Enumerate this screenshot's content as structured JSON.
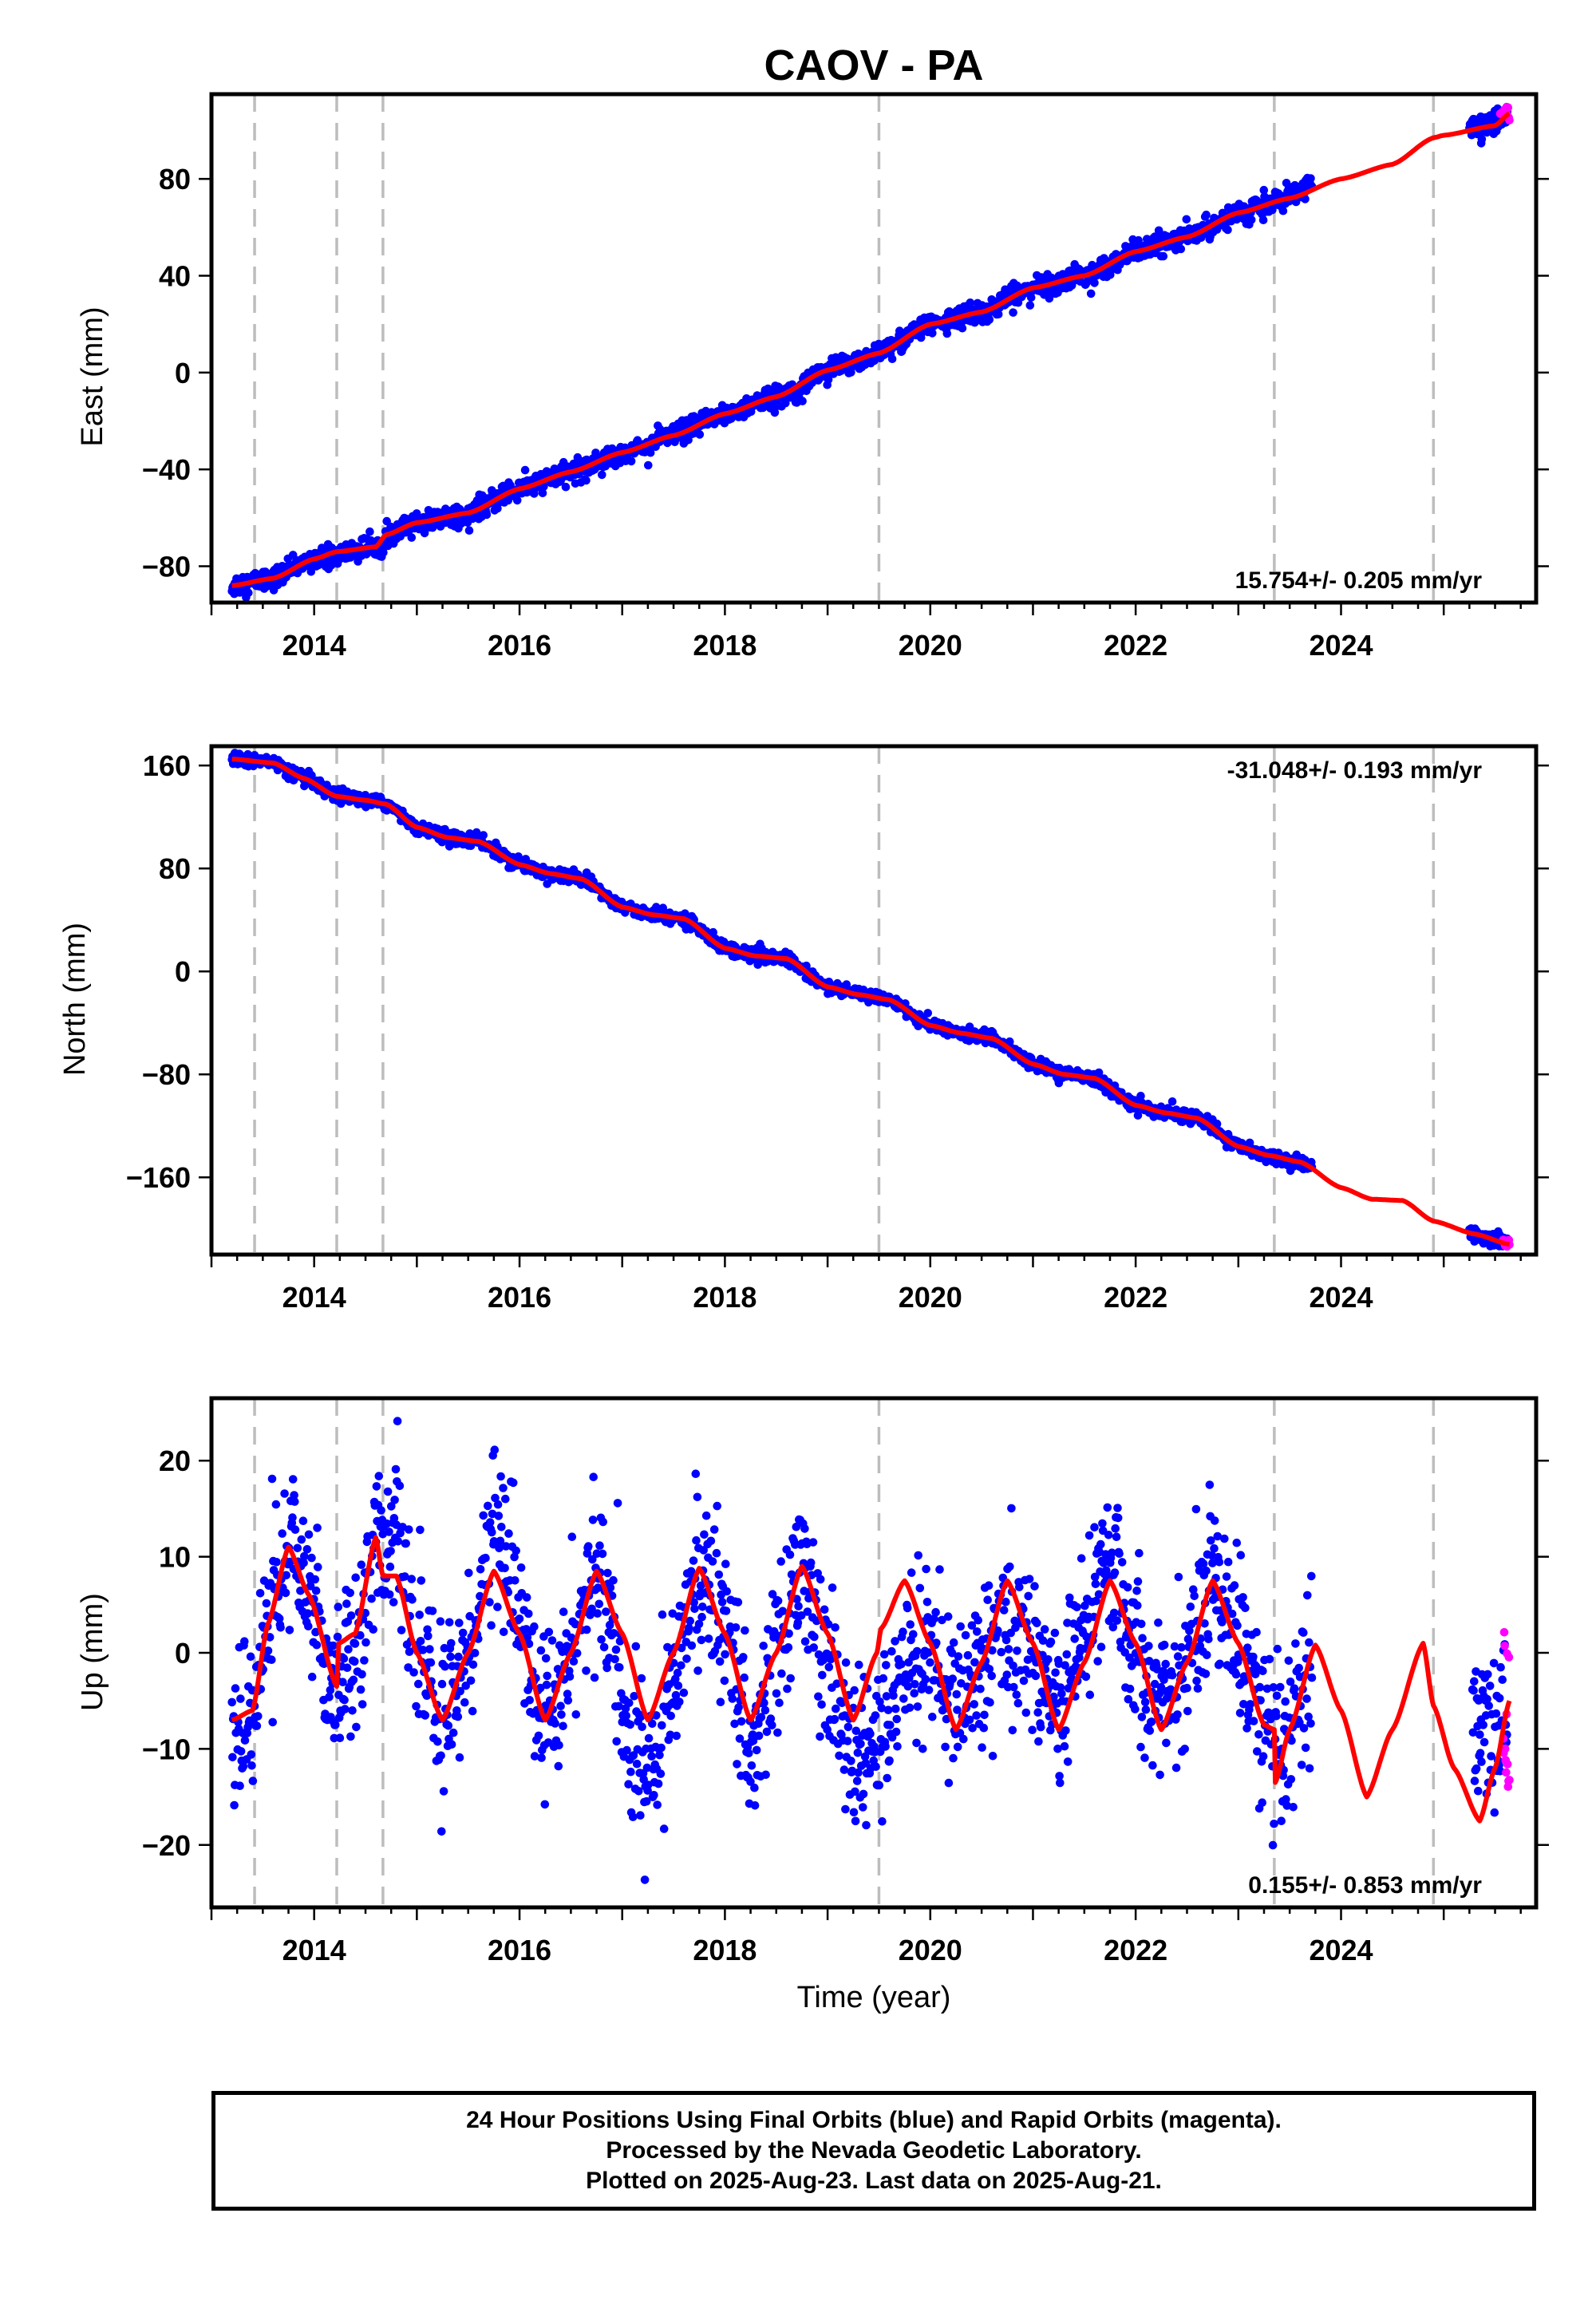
{
  "title": "CAOV - PA",
  "footer": {
    "line1": "24 Hour Positions Using Final Orbits (blue) and Rapid Orbits (magenta).",
    "line2": "Processed by the Nevada Geodetic Laboratory.",
    "line3": "Plotted on 2025-Aug-23. Last data on 2025-Aug-21."
  },
  "colors": {
    "final": "#0000ff",
    "rapid": "#ff00ff",
    "model": "#ff0000",
    "event_line": "#bdbdbd"
  },
  "chart_data": [
    {
      "type": "scatter",
      "ylabel": "East (mm)",
      "xlim": [
        2013.0,
        2025.9
      ],
      "ylim": [
        -95,
        115
      ],
      "xticks": [
        2014,
        2016,
        2018,
        2020,
        2022,
        2024
      ],
      "yticks": [
        -80,
        -40,
        0,
        40,
        80
      ],
      "rate_label": "15.754+/- 0.205 mm/yr",
      "rate_position": "bottom-right",
      "event_lines": [
        2013.42,
        2014.22,
        2014.67,
        2019.5,
        2023.35,
        2024.9
      ],
      "model": [
        [
          2013.2,
          -88
        ],
        [
          2013.6,
          -85
        ],
        [
          2014.0,
          -77
        ],
        [
          2014.22,
          -74
        ],
        [
          2014.6,
          -72
        ],
        [
          2014.7,
          -67
        ],
        [
          2015.0,
          -62
        ],
        [
          2015.5,
          -58
        ],
        [
          2016.0,
          -48
        ],
        [
          2016.5,
          -41
        ],
        [
          2017.0,
          -33
        ],
        [
          2017.5,
          -26
        ],
        [
          2018.0,
          -17
        ],
        [
          2018.5,
          -10
        ],
        [
          2019.0,
          1
        ],
        [
          2019.5,
          8
        ],
        [
          2020.0,
          20
        ],
        [
          2020.5,
          25
        ],
        [
          2021.0,
          35
        ],
        [
          2021.5,
          40
        ],
        [
          2022.0,
          50
        ],
        [
          2022.5,
          56
        ],
        [
          2023.0,
          66
        ],
        [
          2023.5,
          72
        ],
        [
          2024.0,
          80
        ],
        [
          2024.5,
          86
        ],
        [
          2024.9,
          97
        ],
        [
          2025.0,
          98
        ],
        [
          2025.5,
          102
        ],
        [
          2025.64,
          107
        ]
      ],
      "final": [
        [
          2013.2,
          -88
        ],
        [
          2013.6,
          -85
        ],
        [
          2014.0,
          -77
        ],
        [
          2014.6,
          -72
        ],
        [
          2015.0,
          -62
        ],
        [
          2015.5,
          -58
        ],
        [
          2016.0,
          -48
        ],
        [
          2016.5,
          -41
        ],
        [
          2017.0,
          -33
        ],
        [
          2017.5,
          -26
        ],
        [
          2018.0,
          -17
        ],
        [
          2018.5,
          -10
        ],
        [
          2019.0,
          1
        ],
        [
          2019.5,
          8
        ],
        [
          2020.0,
          20
        ],
        [
          2020.5,
          25
        ],
        [
          2021.0,
          35
        ],
        [
          2021.5,
          40
        ],
        [
          2022.0,
          50
        ],
        [
          2022.5,
          56
        ],
        [
          2023.0,
          66
        ],
        [
          2023.5,
          72
        ],
        [
          2023.7,
          78
        ],
        [
          2025.3,
          101
        ],
        [
          2025.6,
          105
        ]
      ],
      "final_noise": 2.2,
      "final_segments": [
        [
          2013.2,
          2023.72
        ],
        [
          2025.25,
          2025.62
        ]
      ],
      "rapid_range": [
        2025.55,
        2025.64
      ],
      "rapid_values": [
        104,
        110
      ]
    },
    {
      "type": "scatter",
      "ylabel": "North (mm)",
      "xlim": [
        2013.0,
        2025.9
      ],
      "ylim": [
        -220,
        175
      ],
      "xticks": [
        2014,
        2016,
        2018,
        2020,
        2022,
        2024
      ],
      "yticks": [
        -160,
        -80,
        0,
        80,
        160
      ],
      "rate_label": "-31.048+/- 0.193 mm/yr",
      "rate_position": "top-right",
      "event_lines": [
        2013.42,
        2014.22,
        2014.67,
        2019.5,
        2023.35,
        2024.9
      ],
      "model": [
        [
          2013.2,
          165
        ],
        [
          2013.6,
          162
        ],
        [
          2013.9,
          150
        ],
        [
          2014.22,
          136
        ],
        [
          2014.5,
          133
        ],
        [
          2014.7,
          130
        ],
        [
          2015.0,
          112
        ],
        [
          2015.3,
          104
        ],
        [
          2015.6,
          101
        ],
        [
          2016.0,
          83
        ],
        [
          2016.3,
          76
        ],
        [
          2016.6,
          72
        ],
        [
          2017.0,
          50
        ],
        [
          2017.3,
          44
        ],
        [
          2017.6,
          41
        ],
        [
          2018.0,
          18
        ],
        [
          2018.3,
          12
        ],
        [
          2018.6,
          10
        ],
        [
          2019.0,
          -12
        ],
        [
          2019.3,
          -18
        ],
        [
          2019.6,
          -22
        ],
        [
          2020.0,
          -42
        ],
        [
          2020.3,
          -48
        ],
        [
          2020.6,
          -52
        ],
        [
          2021.0,
          -72
        ],
        [
          2021.3,
          -80
        ],
        [
          2021.6,
          -83
        ],
        [
          2022.0,
          -104
        ],
        [
          2022.3,
          -110
        ],
        [
          2022.6,
          -114
        ],
        [
          2023.0,
          -136
        ],
        [
          2023.3,
          -143
        ],
        [
          2023.6,
          -148
        ],
        [
          2024.0,
          -168
        ],
        [
          2024.3,
          -177
        ],
        [
          2024.6,
          -178
        ],
        [
          2024.9,
          -194
        ],
        [
          2025.3,
          -204
        ],
        [
          2025.64,
          -212
        ]
      ],
      "final": [
        [
          2013.2,
          165
        ],
        [
          2013.6,
          162
        ],
        [
          2013.9,
          150
        ],
        [
          2014.22,
          136
        ],
        [
          2014.5,
          133
        ],
        [
          2014.7,
          130
        ],
        [
          2015.0,
          112
        ],
        [
          2015.3,
          104
        ],
        [
          2015.6,
          101
        ],
        [
          2016.0,
          83
        ],
        [
          2016.3,
          76
        ],
        [
          2016.6,
          72
        ],
        [
          2017.0,
          50
        ],
        [
          2017.3,
          44
        ],
        [
          2017.6,
          41
        ],
        [
          2018.0,
          18
        ],
        [
          2018.3,
          12
        ],
        [
          2018.6,
          10
        ],
        [
          2019.0,
          -12
        ],
        [
          2019.3,
          -18
        ],
        [
          2019.6,
          -22
        ],
        [
          2020.0,
          -42
        ],
        [
          2020.3,
          -48
        ],
        [
          2020.6,
          -52
        ],
        [
          2021.0,
          -72
        ],
        [
          2021.3,
          -80
        ],
        [
          2021.6,
          -83
        ],
        [
          2022.0,
          -104
        ],
        [
          2022.3,
          -110
        ],
        [
          2022.6,
          -114
        ],
        [
          2023.0,
          -136
        ],
        [
          2023.3,
          -143
        ],
        [
          2023.7,
          -152
        ],
        [
          2025.3,
          -204
        ],
        [
          2025.6,
          -210
        ]
      ],
      "final_noise": 2.5,
      "final_segments": [
        [
          2013.2,
          2023.72
        ],
        [
          2025.25,
          2025.62
        ]
      ],
      "rapid_range": [
        2025.58,
        2025.64
      ],
      "rapid_values": [
        -214,
        -208
      ]
    },
    {
      "type": "scatter",
      "ylabel": "Up (mm)",
      "xlabel": "Time (year)",
      "xlim": [
        2013.0,
        2025.9
      ],
      "ylim": [
        -26.5,
        26.5
      ],
      "xticks": [
        2014,
        2016,
        2018,
        2020,
        2022,
        2024
      ],
      "yticks": [
        -20,
        -10,
        0,
        10,
        20
      ],
      "rate_label": "0.155+/- 0.853 mm/yr",
      "rate_position": "bottom-right",
      "event_lines": [
        2013.42,
        2014.22,
        2014.67,
        2019.5,
        2023.35,
        2024.9
      ],
      "model": [
        [
          2013.2,
          -7
        ],
        [
          2013.4,
          -6
        ],
        [
          2013.55,
          3
        ],
        [
          2013.75,
          11
        ],
        [
          2013.95,
          6
        ],
        [
          2014.22,
          -3.5
        ],
        [
          2014.24,
          1
        ],
        [
          2014.4,
          2
        ],
        [
          2014.6,
          12
        ],
        [
          2014.67,
          8
        ],
        [
          2014.8,
          8
        ],
        [
          2015.0,
          0
        ],
        [
          2015.25,
          -7
        ],
        [
          2015.5,
          0
        ],
        [
          2015.75,
          8.5
        ],
        [
          2016.0,
          2
        ],
        [
          2016.25,
          -7
        ],
        [
          2016.5,
          0
        ],
        [
          2016.75,
          8.5
        ],
        [
          2017.0,
          2
        ],
        [
          2017.25,
          -7
        ],
        [
          2017.5,
          0
        ],
        [
          2017.75,
          8.8
        ],
        [
          2018.0,
          2
        ],
        [
          2018.25,
          -7
        ],
        [
          2018.5,
          0
        ],
        [
          2018.75,
          9
        ],
        [
          2019.0,
          2
        ],
        [
          2019.25,
          -7
        ],
        [
          2019.48,
          0
        ],
        [
          2019.52,
          2.5
        ],
        [
          2019.75,
          7.5
        ],
        [
          2020.0,
          1
        ],
        [
          2020.25,
          -8
        ],
        [
          2020.5,
          -1
        ],
        [
          2020.75,
          7.5
        ],
        [
          2021.0,
          1
        ],
        [
          2021.25,
          -8
        ],
        [
          2021.5,
          -1
        ],
        [
          2021.75,
          7.5
        ],
        [
          2022.0,
          1
        ],
        [
          2022.25,
          -8
        ],
        [
          2022.5,
          -1
        ],
        [
          2022.75,
          7.5
        ],
        [
          2023.0,
          1
        ],
        [
          2023.25,
          -7.5
        ],
        [
          2023.35,
          -8
        ],
        [
          2023.36,
          -13.5
        ],
        [
          2023.5,
          -8
        ],
        [
          2023.75,
          0.8
        ],
        [
          2024.0,
          -6
        ],
        [
          2024.25,
          -15
        ],
        [
          2024.5,
          -8
        ],
        [
          2024.8,
          1
        ],
        [
          2024.9,
          -5.5
        ],
        [
          2025.1,
          -12
        ],
        [
          2025.35,
          -17.5
        ],
        [
          2025.5,
          -12
        ],
        [
          2025.64,
          -5
        ]
      ],
      "final": [
        [
          2013.2,
          -7
        ],
        [
          2013.4,
          -6
        ],
        [
          2013.55,
          3
        ],
        [
          2013.75,
          11
        ],
        [
          2013.95,
          6
        ],
        [
          2014.22,
          -3.5
        ],
        [
          2014.4,
          2
        ],
        [
          2014.6,
          12
        ],
        [
          2014.8,
          12
        ],
        [
          2015.0,
          0
        ],
        [
          2015.25,
          -7
        ],
        [
          2015.5,
          0
        ],
        [
          2015.75,
          14
        ],
        [
          2016.0,
          4
        ],
        [
          2016.25,
          -7
        ],
        [
          2016.5,
          0
        ],
        [
          2016.75,
          8.5
        ],
        [
          2017.0,
          -4
        ],
        [
          2017.25,
          -14
        ],
        [
          2017.5,
          -3
        ],
        [
          2017.75,
          8.8
        ],
        [
          2018.0,
          2
        ],
        [
          2018.25,
          -10
        ],
        [
          2018.5,
          0
        ],
        [
          2018.75,
          9
        ],
        [
          2019.0,
          -2
        ],
        [
          2019.25,
          -12
        ],
        [
          2019.5,
          -10
        ],
        [
          2019.75,
          0
        ],
        [
          2020.0,
          1
        ],
        [
          2020.25,
          -6
        ],
        [
          2020.5,
          -1
        ],
        [
          2020.75,
          3
        ],
        [
          2021.0,
          1
        ],
        [
          2021.25,
          -6
        ],
        [
          2021.5,
          2
        ],
        [
          2021.75,
          10
        ],
        [
          2022.0,
          1
        ],
        [
          2022.25,
          -6
        ],
        [
          2022.5,
          -1
        ],
        [
          2022.75,
          9
        ],
        [
          2023.0,
          1
        ],
        [
          2023.25,
          -7.5
        ],
        [
          2023.4,
          -12
        ],
        [
          2023.55,
          -8
        ],
        [
          2023.7,
          -3
        ],
        [
          2025.3,
          -10
        ],
        [
          2025.45,
          -8
        ],
        [
          2025.6,
          -7
        ]
      ],
      "final_noise": 4.2,
      "final_segments": [
        [
          2013.2,
          2023.72
        ],
        [
          2025.28,
          2025.62
        ]
      ],
      "rapid_range": [
        2025.58,
        2025.64
      ],
      "rapid_values": [
        -15,
        3
      ]
    }
  ]
}
